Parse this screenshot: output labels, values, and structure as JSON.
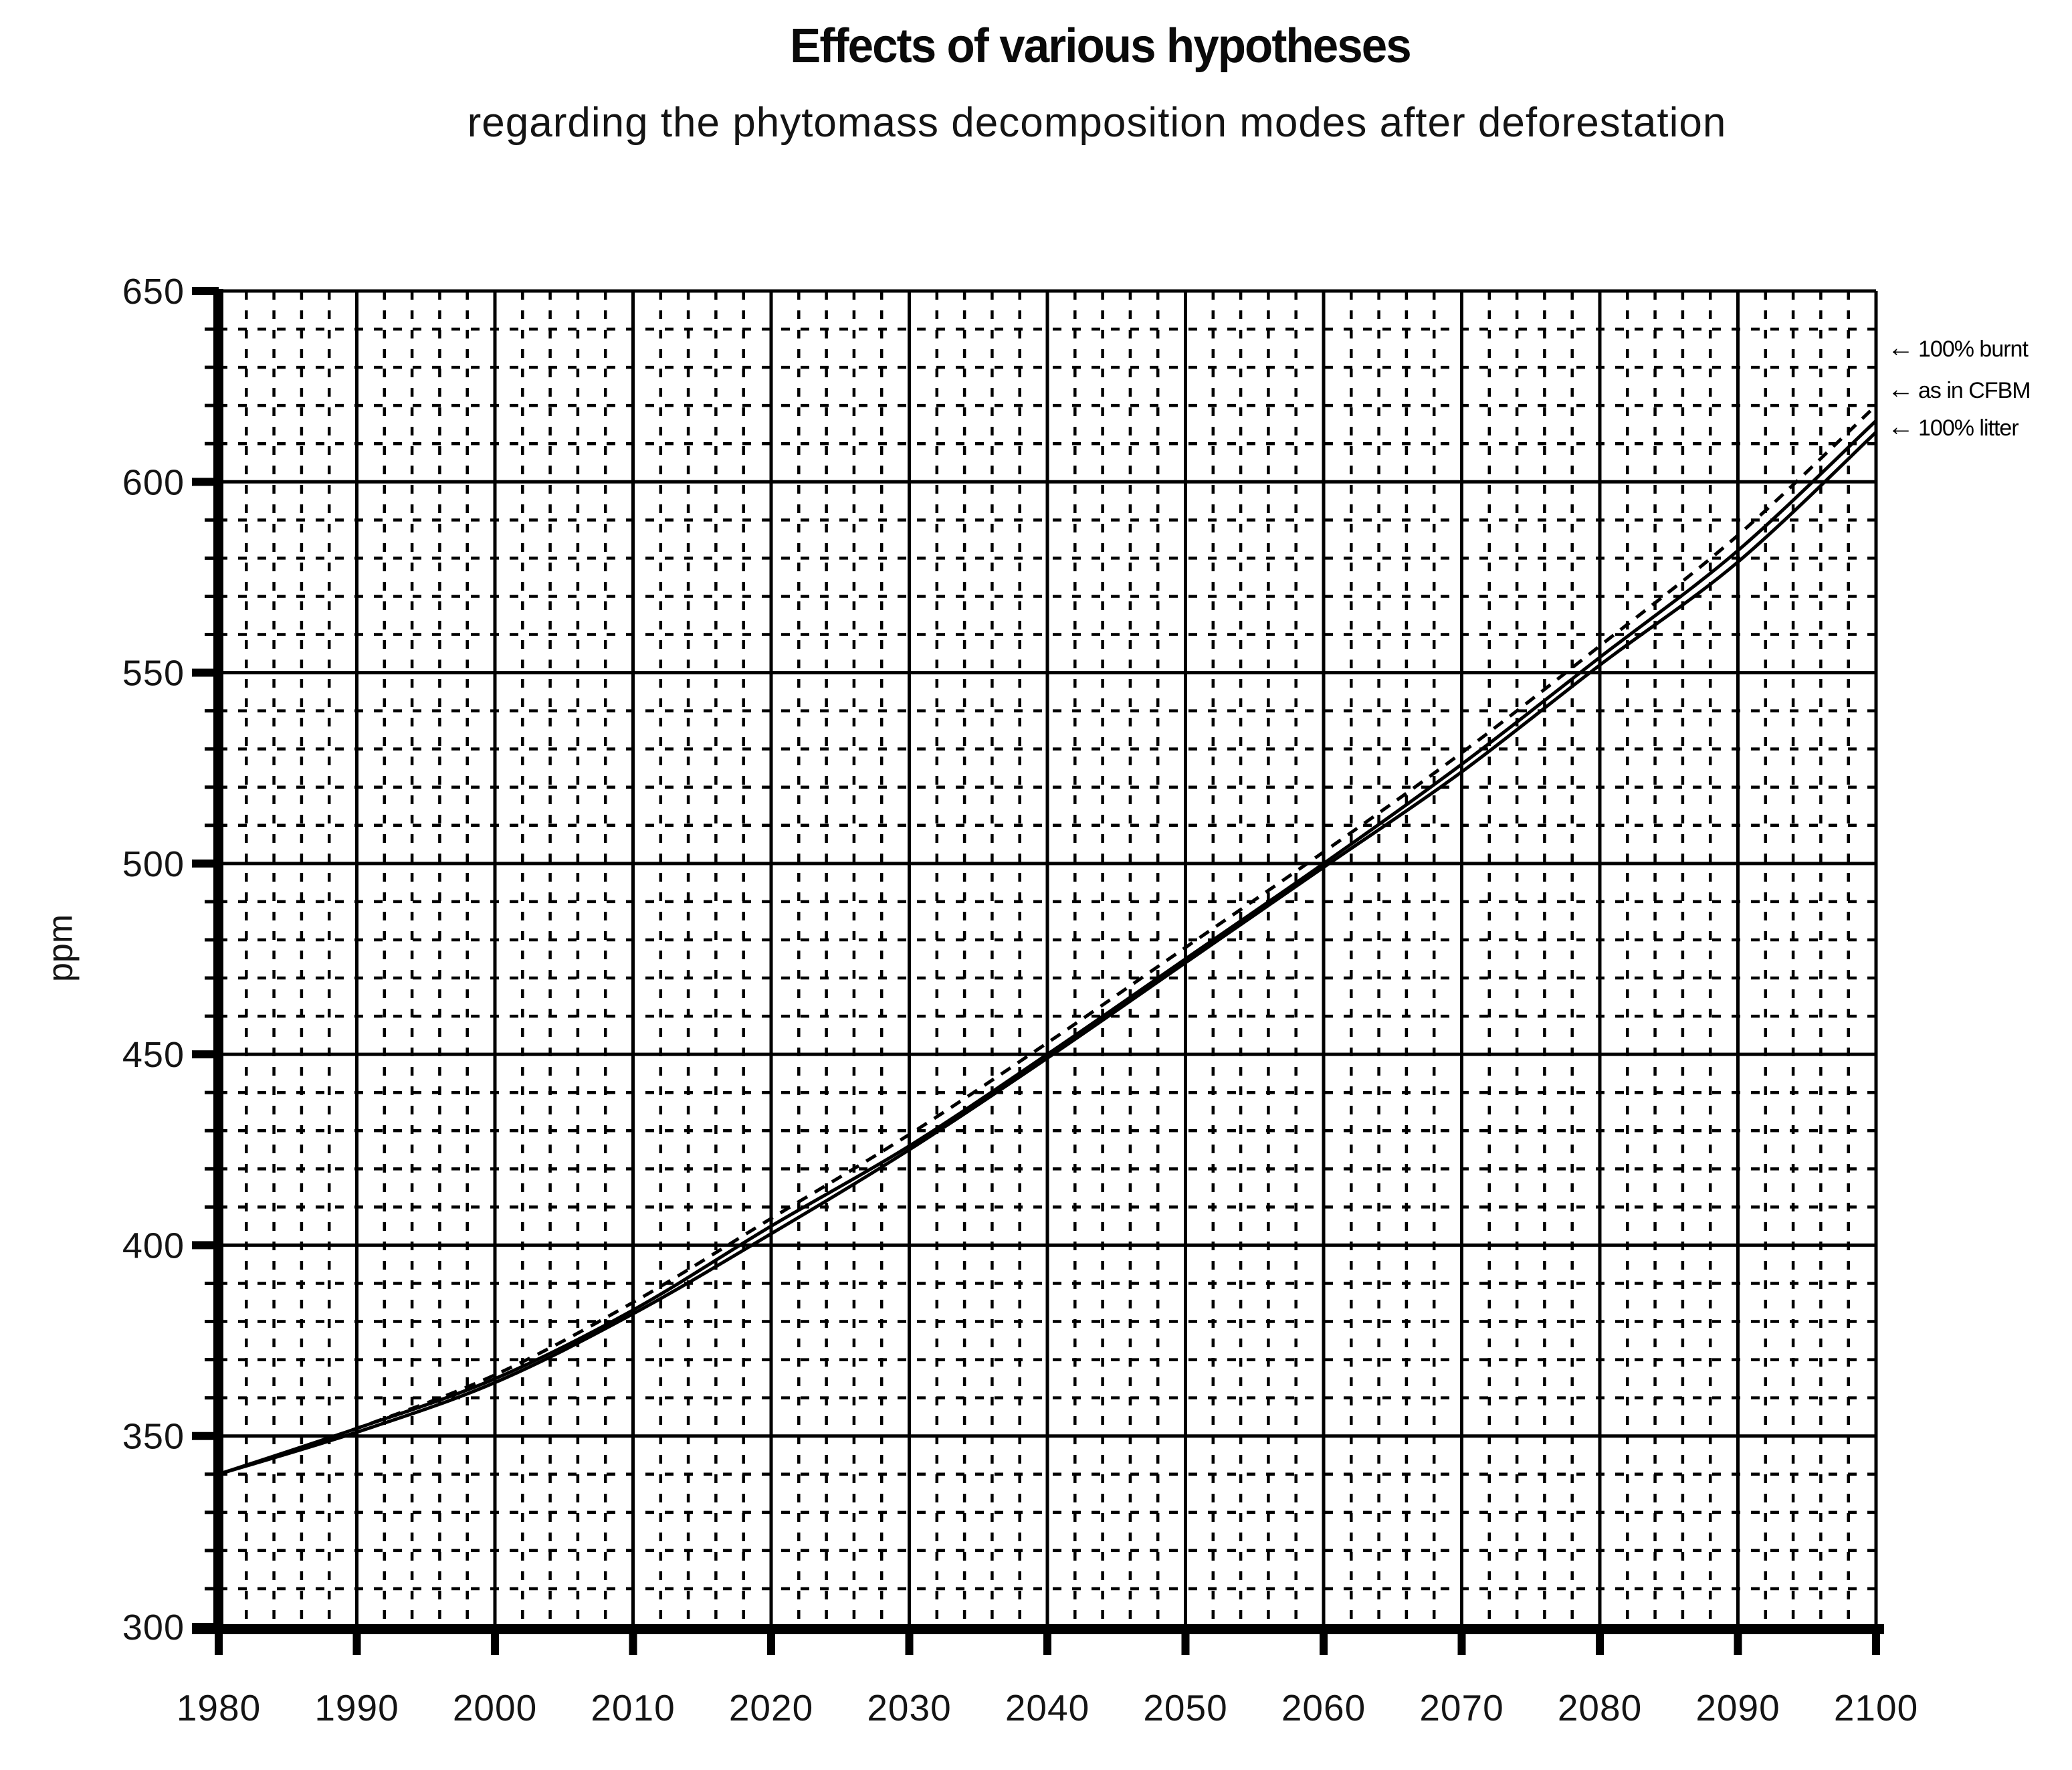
{
  "title": "Effects of various hypotheses",
  "subtitle": "regarding the phytomass decomposition modes after deforestation",
  "y_axis_title": "ppm",
  "legend": {
    "items": [
      {
        "arrow": "←",
        "label": "100% burnt"
      },
      {
        "arrow": "←",
        "label": "as in CFBM"
      },
      {
        "arrow": "←",
        "label": "100% litter"
      }
    ]
  },
  "colors": {
    "ink": "#000000",
    "label_ink": "#141414"
  },
  "chart_data": {
    "type": "line",
    "title": "Effects of various hypotheses",
    "subtitle": "regarding the phytomass decomposition modes after deforestation",
    "xlabel": "",
    "ylabel": "ppm",
    "xlim": [
      1980,
      2100
    ],
    "ylim": [
      300,
      650
    ],
    "x_major_step": 10,
    "x_minor_step": 2,
    "y_major_step": 50,
    "y_minor_step": 10,
    "grid": true,
    "legend_position": "right",
    "x_tick_labels": [
      1980,
      1990,
      2000,
      2010,
      2020,
      2030,
      2040,
      2050,
      2060,
      2070,
      2080,
      2090,
      2100
    ],
    "y_tick_labels": [
      650,
      600,
      550,
      500,
      450,
      400,
      350,
      300
    ],
    "x": [
      1980,
      1990,
      2000,
      2010,
      2020,
      2030,
      2040,
      2050,
      2060,
      2070,
      2080,
      2090,
      2100
    ],
    "series": [
      {
        "name": "100% burnt",
        "style": "dashed",
        "values": [
          340,
          352,
          366,
          385,
          407,
          429,
          453,
          478,
          503,
          529,
          557,
          586,
          620
        ]
      },
      {
        "name": "as in CFBM",
        "style": "solid",
        "values": [
          340,
          352,
          365,
          383,
          405,
          426,
          450,
          475,
          500,
          526,
          554,
          582,
          616
        ]
      },
      {
        "name": "100% litter",
        "style": "solid",
        "values": [
          340,
          351,
          364,
          382,
          403,
          425,
          449,
          474,
          499,
          524,
          552,
          579,
          613
        ]
      }
    ]
  }
}
